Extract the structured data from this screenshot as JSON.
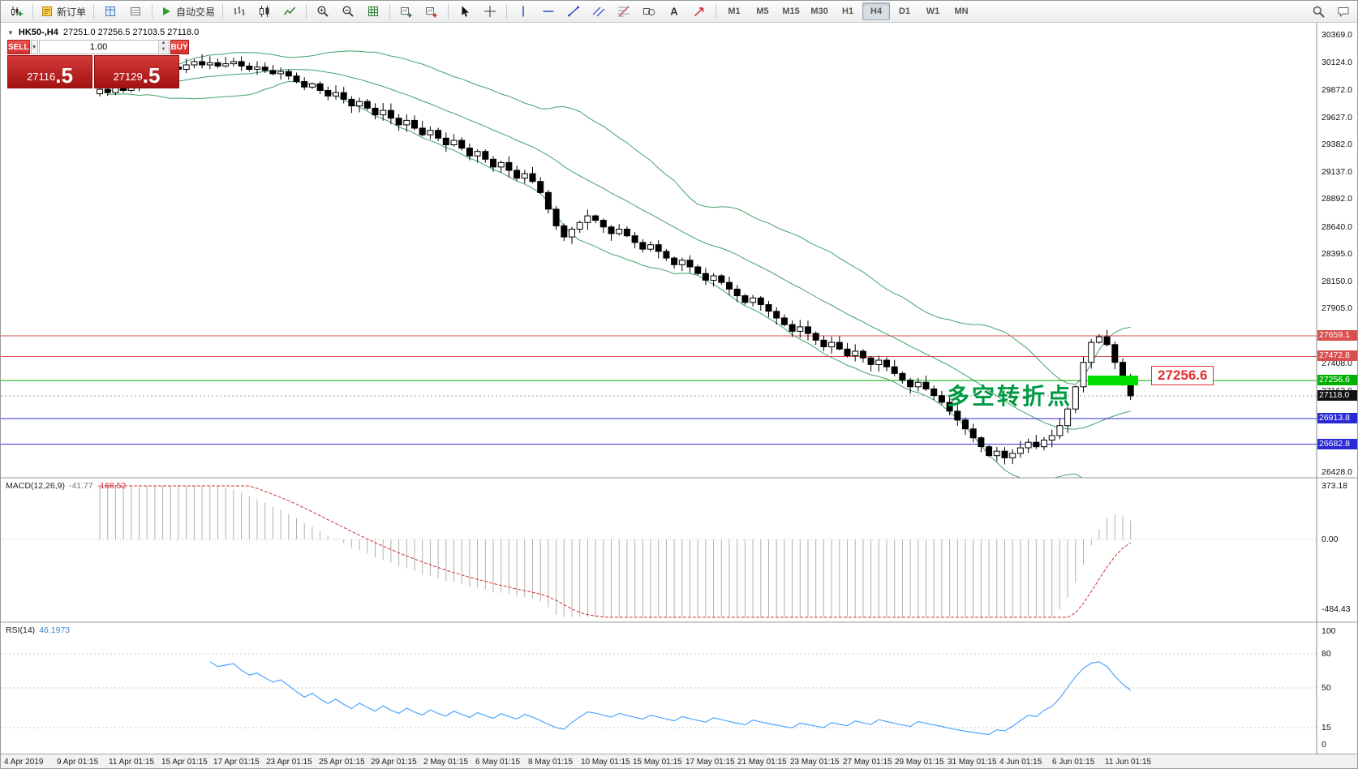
{
  "toolbar": {
    "groups": [
      {
        "items": [
          {
            "name": "new-chart-button",
            "icon": "new-chart"
          }
        ]
      },
      {
        "items": [
          {
            "name": "new-order-button",
            "icon": "new-order",
            "label": "新订单"
          }
        ]
      },
      {
        "items": [
          {
            "name": "market-watch-button",
            "icon": "market-watch"
          },
          {
            "name": "terminal-button",
            "icon": "terminal"
          }
        ]
      },
      {
        "items": [
          {
            "name": "autotrade-button",
            "icon": "play",
            "label": "自动交易"
          }
        ]
      },
      {
        "items": [
          {
            "name": "bars-chart-button",
            "icon": "bars"
          },
          {
            "name": "candles-chart-button",
            "icon": "candles"
          },
          {
            "name": "line-chart-button",
            "icon": "line-chart"
          }
        ]
      },
      {
        "items": [
          {
            "name": "zoom-in-button",
            "icon": "zoom-in"
          },
          {
            "name": "zoom-out-button",
            "icon": "zoom-out"
          },
          {
            "name": "indicators-button",
            "icon": "grid-green"
          }
        ]
      },
      {
        "items": [
          {
            "name": "auto-scroll-button",
            "icon": "auto-scroll"
          },
          {
            "name": "chart-shift-button",
            "icon": "chart-shift"
          }
        ]
      },
      {
        "items": [
          {
            "name": "cursor-button",
            "icon": "cursor"
          },
          {
            "name": "crosshair-button",
            "icon": "crosshair"
          }
        ]
      },
      {
        "items": [
          {
            "name": "vertical-line-button",
            "icon": "vline"
          },
          {
            "name": "horizontal-line-button",
            "icon": "hline"
          },
          {
            "name": "trendline-button",
            "icon": "trendline"
          },
          {
            "name": "channel-button",
            "icon": "channel"
          },
          {
            "name": "fibonacci-button",
            "icon": "fib"
          },
          {
            "name": "shapes-button",
            "icon": "shapes"
          },
          {
            "name": "text-button",
            "icon": "text"
          },
          {
            "name": "arrows-button",
            "icon": "arrows"
          }
        ]
      }
    ],
    "timeframes": [
      "M1",
      "M5",
      "M15",
      "M30",
      "H1",
      "H4",
      "D1",
      "W1",
      "MN"
    ],
    "active_timeframe": "H4",
    "right_items": [
      {
        "name": "search-button",
        "icon": "search"
      },
      {
        "name": "chat-button",
        "icon": "chat"
      }
    ]
  },
  "symbol_info": {
    "collapse_glyph": "▼",
    "symbol": "HK50-,H4",
    "ohlc": "27251.0 27256.5 27103.5 27118.0"
  },
  "trade_panel": {
    "sell_label": "SELL",
    "buy_label": "BUY",
    "volume": "1.00",
    "caret_glyph": "▼",
    "spin_up_glyph": "▲",
    "spin_down_glyph": "▼",
    "sell_price": {
      "main": "27116",
      "big": ".5"
    },
    "buy_price": {
      "main": "27129",
      "big": ".5"
    }
  },
  "price_axis": {
    "plain_labels": [
      {
        "label": "30369.0",
        "price": 30369.0
      },
      {
        "label": "30124.0",
        "price": 30124.0
      },
      {
        "label": "29872.0",
        "price": 29872.0
      },
      {
        "label": "29627.0",
        "price": 29627.0
      },
      {
        "label": "29382.0",
        "price": 29382.0
      },
      {
        "label": "29137.0",
        "price": 29137.0
      },
      {
        "label": "28892.0",
        "price": 28892.0
      },
      {
        "label": "28640.0",
        "price": 28640.0
      },
      {
        "label": "28395.0",
        "price": 28395.0
      },
      {
        "label": "28150.0",
        "price": 28150.0
      },
      {
        "label": "27905.0",
        "price": 27905.0
      },
      {
        "label": "27408.0",
        "price": 27408.0
      },
      {
        "label": "27162.0",
        "price": 27162.0
      },
      {
        "label": "26428.0",
        "price": 26428.0
      }
    ]
  },
  "hlines": [
    {
      "price": 27659.1,
      "label": "27659.1",
      "color": "#d94f4f"
    },
    {
      "price": 27472.8,
      "label": "27472.8",
      "color": "#d94f4f"
    },
    {
      "price": 27256.6,
      "label": "27256.6",
      "color": "#00b200"
    },
    {
      "price": 26913.8,
      "label": "26913.8",
      "color": "#2a2ad4"
    },
    {
      "price": 26682.8,
      "label": "26682.8",
      "color": "#2a2ad4"
    }
  ],
  "current_price": {
    "price": 27118.0,
    "label": "27118.0",
    "tag_bg": "#111111",
    "line_color": "#999999"
  },
  "highlight": {
    "price": 27256.6,
    "color": "#00dd00"
  },
  "annotation": {
    "text": "多空转折点",
    "color": "#009944"
  },
  "callout": {
    "text": "27256.6"
  },
  "macd": {
    "name": "MACD(12,26,9)",
    "value_main": "-41.77",
    "value_signal": "-168.52",
    "axis": [
      {
        "label": "373.18",
        "value": 373.18
      },
      {
        "label": "0.00",
        "value": 0
      },
      {
        "label": "-484.43",
        "value": -484.43
      }
    ]
  },
  "rsi": {
    "name": "RSI(14)",
    "value": "46.1973",
    "axis": [
      {
        "label": "100",
        "value": 100
      },
      {
        "label": "80",
        "value": 80
      },
      {
        "label": "50",
        "value": 50
      },
      {
        "label": "15",
        "value": 15
      },
      {
        "label": "0",
        "value": 0
      }
    ],
    "levels": [
      80,
      50,
      15
    ]
  },
  "time_axis": {
    "labels": [
      "4 Apr 2019",
      "9 Apr 01:15",
      "11 Apr 01:15",
      "15 Apr 01:15",
      "17 Apr 01:15",
      "23 Apr 01:15",
      "25 Apr 01:15",
      "29 Apr 01:15",
      "2 May 01:15",
      "6 May 01:15",
      "8 May 01:15",
      "10 May 01:15",
      "15 May 01:15",
      "17 May 01:15",
      "21 May 01:15",
      "23 May 01:15",
      "27 May 01:15",
      "29 May 01:15",
      "31 May 01:15",
      "4 Jun 01:15",
      "6 Jun 01:15",
      "11 Jun 01:15"
    ]
  },
  "chart_data": {
    "type": "candlestick",
    "symbol": "HK50-",
    "timeframe": "H4",
    "price_axis_range": [
      26380,
      30480
    ],
    "horizontal_lines": [
      27659.1,
      27472.8,
      27256.6,
      26913.8,
      26682.8
    ],
    "last_price": 27118.0,
    "indicators": [
      {
        "name": "Bollinger Bands",
        "period": 20,
        "deviation": 2
      },
      {
        "name": "MACD",
        "params": [
          12,
          26,
          9
        ],
        "last_values": [
          -41.77,
          -168.52
        ]
      },
      {
        "name": "RSI",
        "period": 14,
        "last_value": 46.1973
      }
    ],
    "closes": [
      29880,
      29850,
      29900,
      29870,
      29920,
      29960,
      29930,
      29990,
      30040,
      30080,
      30060,
      30100,
      30130,
      30100,
      30120,
      30090,
      30110,
      30130,
      30090,
      30060,
      30080,
      30050,
      30020,
      30040,
      30000,
      29950,
      29900,
      29930,
      29870,
      29820,
      29850,
      29790,
      29730,
      29770,
      29710,
      29650,
      29690,
      29620,
      29560,
      29600,
      29530,
      29470,
      29510,
      29440,
      29380,
      29420,
      29350,
      29280,
      29320,
      29250,
      29180,
      29220,
      29150,
      29080,
      29120,
      29050,
      28950,
      28800,
      28650,
      28550,
      28620,
      28680,
      28740,
      28700,
      28640,
      28580,
      28620,
      28560,
      28500,
      28440,
      28480,
      28420,
      28360,
      28300,
      28340,
      28280,
      28220,
      28160,
      28200,
      28140,
      28080,
      28020,
      27960,
      28000,
      27940,
      27880,
      27820,
      27760,
      27700,
      27740,
      27680,
      27620,
      27560,
      27600,
      27540,
      27480,
      27520,
      27460,
      27400,
      27440,
      27380,
      27320,
      27260,
      27200,
      27240,
      27180,
      27120,
      27060,
      26980,
      26900,
      26820,
      26740,
      26660,
      26580,
      26620,
      26560,
      26600,
      26650,
      26700,
      26660,
      26720,
      26760,
      26850,
      27000,
      27200,
      27420,
      27600,
      27650,
      27580,
      27420,
      27260,
      27118
    ]
  }
}
